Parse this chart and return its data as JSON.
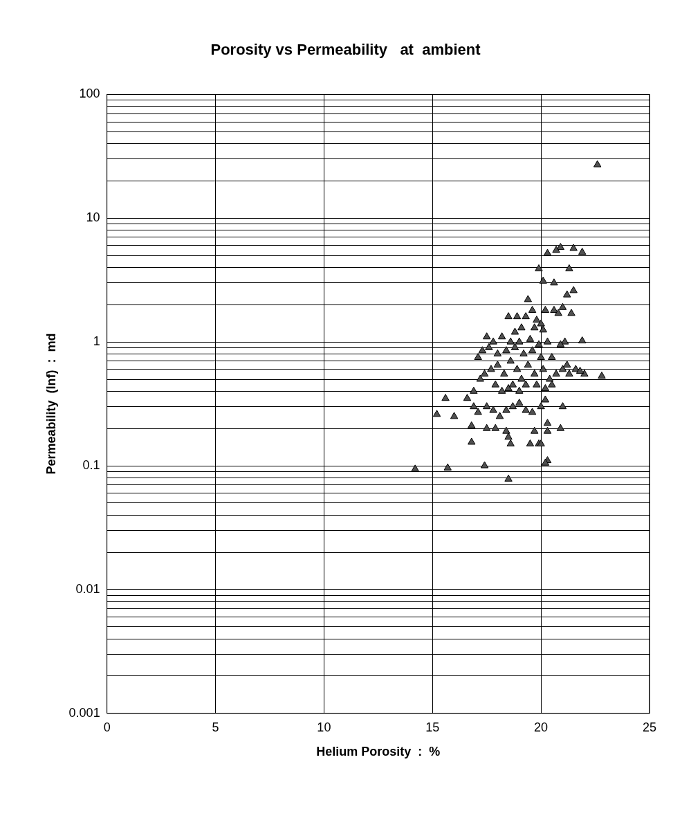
{
  "chart_data": {
    "type": "scatter",
    "title": "Porosity vs Permeability   at  ambient",
    "xlabel": "Helium Porosity  :  %",
    "ylabel": "Permeability  (Inf)  :  md",
    "log": "y",
    "grid": true,
    "marker": "triangle",
    "legend": false,
    "xlim": [
      0,
      25
    ],
    "xticks": [
      0,
      5,
      10,
      15,
      20,
      25
    ],
    "ylim": [
      0.001,
      100
    ],
    "yticks": [
      {
        "value": 0.001,
        "label": "0.001"
      },
      {
        "value": 0.002,
        "label": null
      },
      {
        "value": 0.003,
        "label": null
      },
      {
        "value": 0.004,
        "label": null
      },
      {
        "value": 0.005,
        "label": null
      },
      {
        "value": 0.006,
        "label": null
      },
      {
        "value": 0.007,
        "label": null
      },
      {
        "value": 0.008,
        "label": null
      },
      {
        "value": 0.009,
        "label": null
      },
      {
        "value": 0.01,
        "label": "0.01"
      },
      {
        "value": 0.02,
        "label": null
      },
      {
        "value": 0.03,
        "label": null
      },
      {
        "value": 0.04,
        "label": null
      },
      {
        "value": 0.05,
        "label": null
      },
      {
        "value": 0.06,
        "label": null
      },
      {
        "value": 0.07,
        "label": null
      },
      {
        "value": 0.08,
        "label": null
      },
      {
        "value": 0.09,
        "label": null
      },
      {
        "value": 0.1,
        "label": "0.1"
      },
      {
        "value": 0.2,
        "label": null
      },
      {
        "value": 0.3,
        "label": null
      },
      {
        "value": 0.4,
        "label": null
      },
      {
        "value": 0.5,
        "label": null
      },
      {
        "value": 0.6,
        "label": null
      },
      {
        "value": 0.7,
        "label": null
      },
      {
        "value": 0.8,
        "label": null
      },
      {
        "value": 0.9,
        "label": null
      },
      {
        "value": 1,
        "label": "1"
      },
      {
        "value": 2,
        "label": null
      },
      {
        "value": 3,
        "label": null
      },
      {
        "value": 4,
        "label": null
      },
      {
        "value": 5,
        "label": null
      },
      {
        "value": 6,
        "label": null
      },
      {
        "value": 7,
        "label": null
      },
      {
        "value": 8,
        "label": null
      },
      {
        "value": 9,
        "label": null
      },
      {
        "value": 10,
        "label": "10"
      },
      {
        "value": 20,
        "label": null
      },
      {
        "value": 30,
        "label": null
      },
      {
        "value": 40,
        "label": null
      },
      {
        "value": 50,
        "label": null
      },
      {
        "value": 60,
        "label": null
      },
      {
        "value": 70,
        "label": null
      },
      {
        "value": 80,
        "label": null
      },
      {
        "value": 90,
        "label": null
      },
      {
        "value": 100,
        "label": "100"
      }
    ],
    "series": [
      {
        "color": "#505050",
        "x": [
          22.6,
          20.9,
          21.5,
          21.9,
          20.7,
          20.3,
          19.9,
          20.6,
          20.1,
          21.3,
          20.2,
          20.6,
          21.2,
          21.5,
          19.4,
          19.3,
          19.6,
          19.8,
          20.0,
          20.8,
          21.0,
          21.4,
          18.5,
          18.9,
          18.8,
          19.1,
          19.7,
          20.1,
          17.5,
          17.8,
          18.2,
          18.6,
          19.0,
          19.5,
          19.9,
          20.3,
          21.1,
          21.9,
          20.9,
          17.1,
          17.3,
          17.6,
          18.0,
          18.4,
          18.8,
          19.2,
          19.6,
          20.0,
          20.5,
          21.2,
          21.6,
          22.0,
          22.8,
          16.6,
          16.9,
          17.2,
          17.4,
          17.7,
          18.0,
          18.3,
          18.6,
          18.9,
          19.1,
          19.4,
          19.7,
          20.1,
          20.4,
          20.7,
          21.0,
          21.3,
          21.8,
          17.9,
          18.2,
          18.5,
          18.7,
          19.0,
          19.3,
          19.8,
          20.2,
          20.5,
          15.6,
          16.0,
          15.2,
          16.9,
          17.1,
          17.5,
          17.8,
          18.1,
          18.4,
          18.7,
          19.0,
          19.3,
          19.6,
          20.0,
          20.2,
          21.0,
          20.3,
          16.8,
          17.5,
          17.9,
          18.4,
          18.5,
          18.6,
          19.5,
          19.7,
          19.9,
          20.3,
          20.9,
          20.0,
          16.8,
          20.3,
          20.2,
          17.4,
          15.7,
          14.2,
          18.5
        ],
        "values": [
          27,
          5.8,
          5.7,
          5.3,
          5.5,
          5.2,
          3.9,
          3.0,
          3.1,
          3.9,
          1.8,
          1.8,
          2.4,
          2.6,
          2.2,
          1.6,
          1.8,
          1.5,
          1.4,
          1.7,
          1.9,
          1.7,
          1.6,
          1.6,
          1.2,
          1.3,
          1.3,
          1.25,
          1.1,
          1.0,
          1.1,
          1.0,
          1.0,
          1.05,
          0.95,
          1.0,
          1.0,
          1.02,
          0.95,
          0.75,
          0.85,
          0.9,
          0.8,
          0.85,
          0.9,
          0.8,
          0.85,
          0.75,
          0.75,
          0.65,
          0.6,
          0.55,
          0.53,
          0.35,
          0.4,
          0.5,
          0.55,
          0.6,
          0.65,
          0.55,
          0.7,
          0.6,
          0.5,
          0.65,
          0.55,
          0.6,
          0.5,
          0.55,
          0.6,
          0.55,
          0.58,
          0.45,
          0.4,
          0.42,
          0.45,
          0.4,
          0.45,
          0.45,
          0.42,
          0.45,
          0.35,
          0.25,
          0.26,
          0.3,
          0.27,
          0.3,
          0.28,
          0.25,
          0.28,
          0.3,
          0.32,
          0.28,
          0.27,
          0.3,
          0.34,
          0.3,
          0.22,
          0.21,
          0.2,
          0.2,
          0.19,
          0.17,
          0.15,
          0.15,
          0.19,
          0.15,
          0.19,
          0.2,
          0.15,
          0.155,
          0.11,
          0.105,
          0.1,
          0.096,
          0.094,
          0.078
        ]
      }
    ]
  }
}
